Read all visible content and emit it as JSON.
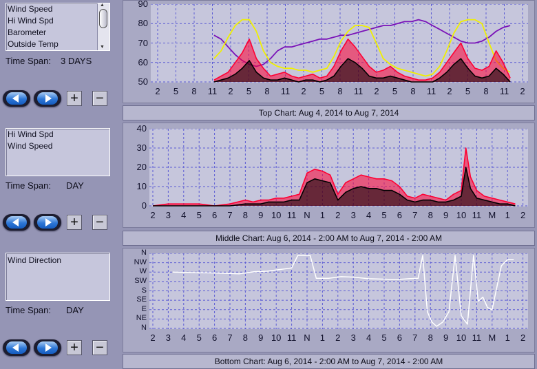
{
  "colors": {
    "background": "#9595b5",
    "plot_bg": "#c6c6dc",
    "wind_speed": "#000000",
    "hi_wind_spd": "#ff0033",
    "barometer": "#7a12b8",
    "outside_temp": "#f0f000",
    "wind_direction": "#ffffff"
  },
  "panels": [
    {
      "list_items": [
        "Wind Speed",
        "Hi Wind Spd",
        "Barometer",
        "Outside Temp"
      ],
      "time_span_label": "Time Span:",
      "time_span_value": "3 DAYS",
      "caption": "Top Chart:  Aug 4, 2014   to  Aug 7, 2014"
    },
    {
      "list_items": [
        "Hi Wind Spd",
        "Wind Speed"
      ],
      "time_span_label": "Time Span:",
      "time_span_value": "DAY",
      "caption": "Middle Chart:  Aug 6, 2014 - 2:00 AM   to  Aug 7, 2014 - 2:00 AM"
    },
    {
      "list_items": [
        "Wind Direction"
      ],
      "time_span_label": "Time Span:",
      "time_span_value": "DAY",
      "caption": "Bottom Chart:  Aug 6, 2014 - 2:00 AM   to  Aug 7, 2014 - 2:00 AM"
    }
  ],
  "controls": {
    "prev_icon": "left-arrow-icon",
    "next_icon": "right-arrow-icon",
    "zoom_in": "+",
    "zoom_out": "−"
  },
  "chart_data": [
    {
      "type": "line",
      "ylim": [
        50,
        90
      ],
      "yticks": [
        "90",
        "80",
        "70",
        "60",
        "50"
      ],
      "x_ticks": [
        "2",
        "5",
        "8",
        "11",
        "2",
        "5",
        "8",
        "11",
        "2",
        "5",
        "8",
        "11",
        "2",
        "5",
        "8",
        "11",
        "2",
        "5",
        "8",
        "11",
        "2"
      ],
      "series": [
        {
          "name": "Barometer",
          "x": [
            3.2,
            3.6,
            4.0,
            4.4,
            4.8,
            5.2,
            5.6,
            6.0,
            6.4,
            6.8,
            7.2,
            7.6,
            8.0,
            8.4,
            8.8,
            9.2,
            9.6,
            10.0,
            10.4,
            10.8,
            11.2,
            11.6,
            12.0,
            12.4,
            12.8,
            13.2,
            13.6,
            14.0,
            14.4,
            14.8,
            15.2,
            15.6,
            16.0,
            16.4,
            16.8,
            17.2,
            17.6,
            18.0,
            18.4,
            18.8,
            19.2,
            19.6,
            20.0
          ],
          "values": [
            74,
            72,
            68,
            64,
            61,
            59,
            58,
            59,
            62,
            66,
            68,
            68,
            69,
            70,
            71,
            72,
            72,
            73,
            74,
            74,
            75,
            76,
            77,
            78,
            79,
            79,
            80,
            81,
            81,
            82,
            81,
            79,
            77,
            75,
            73,
            71,
            70,
            70,
            71,
            73,
            76,
            78,
            79
          ]
        },
        {
          "name": "Outside Temp",
          "x": [
            3.2,
            3.6,
            4.0,
            4.4,
            4.8,
            5.2,
            5.6,
            6.0,
            6.4,
            6.8,
            7.2,
            7.6,
            8.0,
            8.4,
            8.8,
            9.2,
            9.6,
            10.0,
            10.4,
            10.8,
            11.2,
            11.6,
            12.0,
            12.4,
            12.8,
            13.2,
            13.6,
            14.0,
            14.4,
            14.8,
            15.2,
            15.6,
            16.0,
            16.4,
            16.8,
            17.2,
            17.6,
            18.0,
            18.4,
            18.8,
            19.2,
            19.6,
            20.0
          ],
          "values": [
            62,
            66,
            73,
            79,
            82,
            82,
            76,
            66,
            60,
            58,
            57,
            57,
            56,
            56,
            55,
            56,
            57,
            63,
            71,
            76,
            79,
            79,
            78,
            70,
            62,
            59,
            57,
            56,
            55,
            54,
            53,
            54,
            58,
            66,
            75,
            81,
            82,
            82,
            80,
            70,
            61,
            57,
            55
          ]
        },
        {
          "name": "Hi Wind Spd",
          "x": [
            3.2,
            3.6,
            4.0,
            4.4,
            4.8,
            5.2,
            5.6,
            6.0,
            6.4,
            6.8,
            7.2,
            7.6,
            8.0,
            8.4,
            8.8,
            9.2,
            9.6,
            10.0,
            10.4,
            10.8,
            11.2,
            11.6,
            12.0,
            12.4,
            12.8,
            13.2,
            13.6,
            14.0,
            14.4,
            14.8,
            15.2,
            15.6,
            16.0,
            16.4,
            16.8,
            17.2,
            17.6,
            18.0,
            18.4,
            18.8,
            19.2,
            19.6,
            20.0
          ],
          "values": [
            51,
            53,
            55,
            60,
            65,
            72,
            62,
            57,
            53,
            54,
            55,
            53,
            52,
            53,
            54,
            52,
            53,
            58,
            66,
            72,
            68,
            63,
            58,
            55,
            56,
            58,
            55,
            53,
            52,
            51,
            51,
            52,
            55,
            60,
            65,
            70,
            62,
            57,
            56,
            58,
            66,
            60,
            52
          ]
        },
        {
          "name": "Wind Speed",
          "x": [
            3.2,
            3.6,
            4.0,
            4.4,
            4.8,
            5.2,
            5.6,
            6.0,
            6.4,
            6.8,
            7.2,
            7.6,
            8.0,
            8.4,
            8.8,
            9.2,
            9.6,
            10.0,
            10.4,
            10.8,
            11.2,
            11.6,
            12.0,
            12.4,
            12.8,
            13.2,
            13.6,
            14.0,
            14.4,
            14.8,
            15.2,
            15.6,
            16.0,
            16.4,
            16.8,
            17.2,
            17.6,
            18.0,
            18.4,
            18.8,
            19.2,
            19.6,
            20.0
          ],
          "values": [
            50,
            51,
            52,
            54,
            57,
            61,
            55,
            52,
            51,
            51,
            52,
            51,
            50,
            51,
            51,
            50,
            51,
            53,
            58,
            62,
            60,
            57,
            53,
            52,
            52,
            53,
            52,
            51,
            50,
            50,
            50,
            50,
            52,
            55,
            59,
            62,
            57,
            53,
            52,
            53,
            57,
            54,
            50
          ]
        }
      ]
    },
    {
      "type": "line",
      "ylim": [
        0,
        40
      ],
      "yticks": [
        "40",
        "30",
        "20",
        "10",
        "0"
      ],
      "x_ticks": [
        "2",
        "3",
        "4",
        "5",
        "6",
        "7",
        "8",
        "9",
        "10",
        "11",
        "N",
        "1",
        "2",
        "3",
        "4",
        "5",
        "6",
        "7",
        "8",
        "9",
        "10",
        "11",
        "M",
        "1",
        "2"
      ],
      "series": [
        {
          "name": "Hi Wind Spd",
          "x": [
            0,
            1,
            2,
            3,
            4,
            5,
            6,
            6.5,
            7,
            7.5,
            8,
            8.5,
            9,
            9.5,
            10,
            10.5,
            11,
            11.5,
            12,
            12.5,
            13,
            13.5,
            14,
            14.5,
            15,
            15.5,
            16,
            16.5,
            17,
            17.5,
            18,
            18.5,
            19,
            19.5,
            20,
            20.3,
            20.6,
            21,
            21.5,
            22,
            22.5,
            23,
            23.5
          ],
          "values": [
            0,
            1,
            1,
            1,
            0,
            1,
            3,
            2,
            3,
            3,
            4,
            4,
            5,
            6,
            17,
            19,
            18,
            16,
            6,
            12,
            14,
            16,
            15,
            14,
            14,
            13,
            10,
            5,
            4,
            6,
            5,
            4,
            3,
            6,
            8,
            30,
            15,
            8,
            5,
            4,
            3,
            2,
            1
          ]
        },
        {
          "name": "Wind Speed",
          "x": [
            0,
            1,
            2,
            3,
            4,
            5,
            6,
            6.5,
            7,
            7.5,
            8,
            8.5,
            9,
            9.5,
            10,
            10.5,
            11,
            11.5,
            12,
            12.5,
            13,
            13.5,
            14,
            14.5,
            15,
            15.5,
            16,
            16.5,
            17,
            17.5,
            18,
            18.5,
            19,
            19.5,
            20,
            20.3,
            20.6,
            21,
            21.5,
            22,
            22.5,
            23,
            23.5
          ],
          "values": [
            0,
            0,
            0,
            0,
            0,
            0,
            1,
            1,
            1,
            2,
            2,
            2,
            3,
            3,
            12,
            14,
            13,
            12,
            3,
            7,
            9,
            10,
            9,
            9,
            8,
            8,
            6,
            3,
            2,
            3,
            3,
            2,
            2,
            3,
            5,
            20,
            9,
            4,
            3,
            2,
            1,
            1,
            0
          ]
        }
      ]
    },
    {
      "type": "line",
      "yticks": [
        "N",
        "NW",
        "W",
        "SW",
        "S",
        "SE",
        "E",
        "NE",
        "N"
      ],
      "x_ticks": [
        "2",
        "3",
        "4",
        "5",
        "6",
        "7",
        "8",
        "9",
        "10",
        "11",
        "N",
        "1",
        "2",
        "3",
        "4",
        "5",
        "6",
        "7",
        "8",
        "9",
        "10",
        "11",
        "M",
        "1",
        "2"
      ],
      "series": [
        {
          "name": "Wind Direction",
          "x": [
            1.3,
            2.5,
            4,
            5.6,
            6.6,
            7.4,
            8.2,
            9.0,
            9.4,
            10.2,
            10.6,
            11.4,
            12.2,
            13.0,
            14.0,
            15.0,
            15.8,
            16.6,
            17.2,
            17.5,
            17.8,
            18.1,
            18.4,
            18.8,
            19.2,
            19.6,
            20.0,
            20.4,
            20.8,
            21.1,
            21.4,
            21.7,
            22.0,
            22.6,
            23.0,
            23.4
          ],
          "values": [
            270,
            268,
            266,
            262,
            272,
            274,
            282,
            290,
            350,
            350,
            240,
            240,
            248,
            246,
            238,
            236,
            234,
            238,
            240,
            350,
            80,
            30,
            10,
            30,
            80,
            350,
            60,
            20,
            350,
            130,
            150,
            100,
            90,
            300,
            330,
            330
          ]
        }
      ]
    }
  ]
}
